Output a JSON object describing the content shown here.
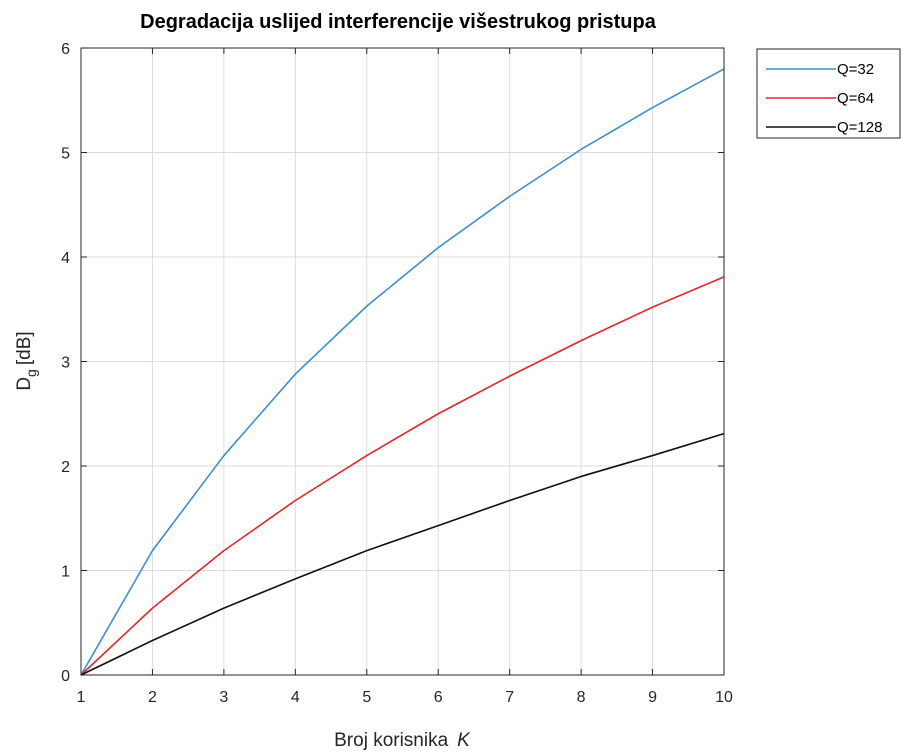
{
  "chart_data": {
    "type": "line",
    "title": "Degradacija uslijed interferencije višestrukog pristupa",
    "xlabel": "Broj korisnika",
    "xlabel_var": "K",
    "ylabel_main": "D",
    "ylabel_sub": "g",
    "ylabel_unit": "[dB]",
    "x": [
      1,
      2,
      3,
      4,
      5,
      6,
      7,
      8,
      9,
      10
    ],
    "xlim": [
      1,
      10
    ],
    "ylim": [
      0,
      6
    ],
    "xticks": [
      1,
      2,
      3,
      4,
      5,
      6,
      7,
      8,
      9,
      10
    ],
    "yticks": [
      0,
      1,
      2,
      3,
      4,
      5,
      6
    ],
    "grid": true,
    "legend_position": "outside-top-right",
    "series": [
      {
        "name": "Q=32",
        "color": "#3a8fd0",
        "values": [
          0,
          1.19,
          2.1,
          2.88,
          3.53,
          4.09,
          4.58,
          5.03,
          5.43,
          5.8
        ]
      },
      {
        "name": "Q=64",
        "color": "#e8262a",
        "values": [
          0,
          0.64,
          1.19,
          1.67,
          2.1,
          2.5,
          2.86,
          3.2,
          3.52,
          3.81
        ]
      },
      {
        "name": "Q=128",
        "color": "#111111",
        "values": [
          0,
          0.33,
          0.64,
          0.92,
          1.19,
          1.43,
          1.67,
          1.9,
          2.1,
          2.31
        ]
      }
    ]
  }
}
